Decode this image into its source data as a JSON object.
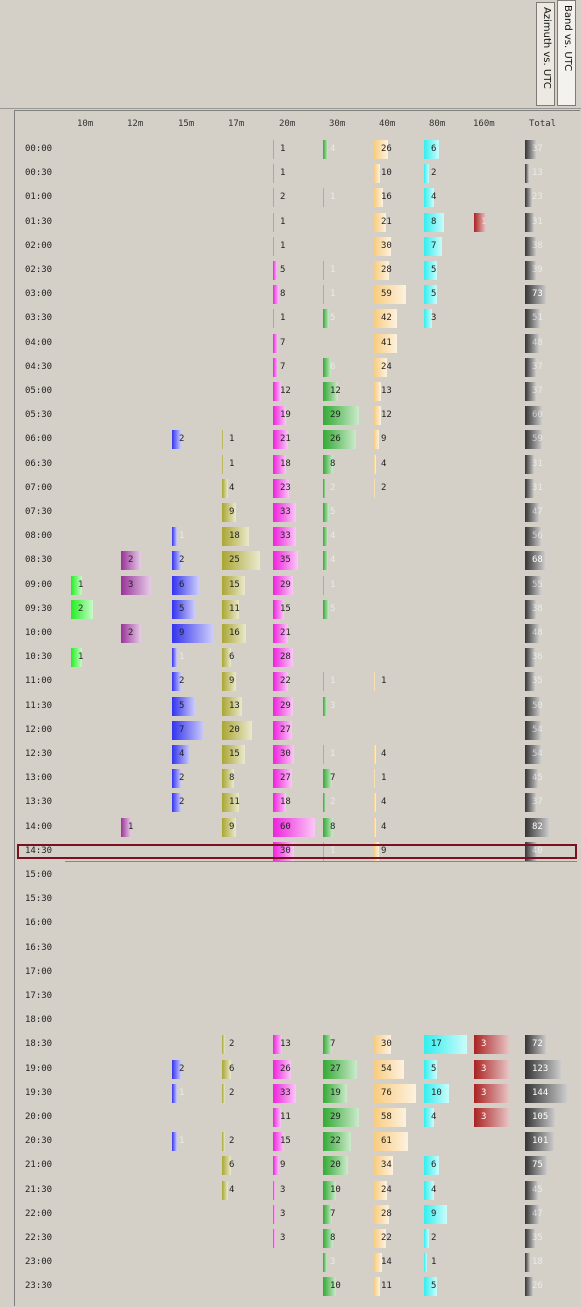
{
  "tabs": [
    {
      "label": "Band vs. UTC"
    },
    {
      "label": "Azimuth vs. UTC"
    }
  ],
  "columns": [
    "10m",
    "12m",
    "15m",
    "17m",
    "20m",
    "30m",
    "40m",
    "80m",
    "160m",
    "Total"
  ],
  "highlighted_row": "14:30",
  "colors": {
    "10m": "#22ee22",
    "12m": "#993399",
    "15m": "#3333ee",
    "17m": "#aaa633",
    "20m": "#ee22dd",
    "30m": "#33aa33",
    "40m": "#f8cc80",
    "80m": "#33eeee",
    "160m": "#aa2222",
    "Total": "#333333"
  },
  "chart_data": {
    "type": "table",
    "columns": [
      "10m",
      "12m",
      "15m",
      "17m",
      "20m",
      "30m",
      "40m",
      "80m",
      "160m",
      "Total"
    ],
    "rows": [
      {
        "time": "00:00",
        "values": {
          "20m": 1,
          "30m": 4,
          "40m": 26,
          "80m": 6,
          "Total": 37
        }
      },
      {
        "time": "00:30",
        "values": {
          "20m": 1,
          "40m": 10,
          "80m": 2,
          "Total": 13
        }
      },
      {
        "time": "01:00",
        "values": {
          "20m": 2,
          "30m": 1,
          "40m": 16,
          "80m": 4,
          "Total": 23
        }
      },
      {
        "time": "01:30",
        "values": {
          "20m": 1,
          "40m": 21,
          "80m": 8,
          "160m": 1,
          "Total": 31
        }
      },
      {
        "time": "02:00",
        "values": {
          "20m": 1,
          "40m": 30,
          "80m": 7,
          "Total": 38
        }
      },
      {
        "time": "02:30",
        "values": {
          "20m": 5,
          "30m": 1,
          "40m": 28,
          "80m": 5,
          "Total": 39
        }
      },
      {
        "time": "03:00",
        "values": {
          "20m": 8,
          "30m": 1,
          "40m": 59,
          "80m": 5,
          "Total": 73
        }
      },
      {
        "time": "03:30",
        "values": {
          "20m": 1,
          "30m": 5,
          "40m": 42,
          "80m": 3,
          "Total": 51
        }
      },
      {
        "time": "04:00",
        "values": {
          "20m": 7,
          "40m": 41,
          "Total": 48
        }
      },
      {
        "time": "04:30",
        "values": {
          "20m": 7,
          "30m": 6,
          "40m": 24,
          "Total": 37
        }
      },
      {
        "time": "05:00",
        "values": {
          "20m": 12,
          "30m": 12,
          "40m": 13,
          "Total": 37
        }
      },
      {
        "time": "05:30",
        "values": {
          "20m": 19,
          "30m": 29,
          "40m": 12,
          "Total": 60
        }
      },
      {
        "time": "06:00",
        "values": {
          "15m": 2,
          "17m": 1,
          "20m": 21,
          "30m": 26,
          "40m": 9,
          "Total": 59
        }
      },
      {
        "time": "06:30",
        "values": {
          "17m": 1,
          "20m": 18,
          "30m": 8,
          "40m": 4,
          "Total": 31
        }
      },
      {
        "time": "07:00",
        "values": {
          "17m": 4,
          "20m": 23,
          "30m": 2,
          "40m": 2,
          "Total": 31
        }
      },
      {
        "time": "07:30",
        "values": {
          "17m": 9,
          "20m": 33,
          "30m": 5,
          "Total": 47
        }
      },
      {
        "time": "08:00",
        "values": {
          "15m": 1,
          "17m": 18,
          "20m": 33,
          "30m": 4,
          "Total": 56
        }
      },
      {
        "time": "08:30",
        "values": {
          "12m": 2,
          "15m": 2,
          "17m": 25,
          "20m": 35,
          "30m": 4,
          "Total": 68
        }
      },
      {
        "time": "09:00",
        "values": {
          "10m": 1,
          "12m": 3,
          "15m": 6,
          "17m": 15,
          "20m": 29,
          "30m": 1,
          "Total": 55
        }
      },
      {
        "time": "09:30",
        "values": {
          "10m": 2,
          "15m": 5,
          "17m": 11,
          "20m": 15,
          "30m": 5,
          "Total": 38
        }
      },
      {
        "time": "10:00",
        "values": {
          "12m": 2,
          "15m": 9,
          "17m": 16,
          "20m": 21,
          "Total": 48
        }
      },
      {
        "time": "10:30",
        "values": {
          "10m": 1,
          "15m": 1,
          "17m": 6,
          "20m": 28,
          "Total": 36
        }
      },
      {
        "time": "11:00",
        "values": {
          "15m": 2,
          "17m": 9,
          "20m": 22,
          "30m": 1,
          "40m": 1,
          "Total": 35
        }
      },
      {
        "time": "11:30",
        "values": {
          "15m": 5,
          "17m": 13,
          "20m": 29,
          "30m": 3,
          "Total": 50
        }
      },
      {
        "time": "12:00",
        "values": {
          "15m": 7,
          "17m": 20,
          "20m": 27,
          "Total": 54
        }
      },
      {
        "time": "12:30",
        "values": {
          "15m": 4,
          "17m": 15,
          "20m": 30,
          "30m": 1,
          "40m": 4,
          "Total": 54
        }
      },
      {
        "time": "13:00",
        "values": {
          "15m": 2,
          "17m": 8,
          "20m": 27,
          "30m": 7,
          "40m": 1,
          "Total": 45
        }
      },
      {
        "time": "13:30",
        "values": {
          "15m": 2,
          "17m": 11,
          "20m": 18,
          "30m": 2,
          "40m": 4,
          "Total": 37
        }
      },
      {
        "time": "14:00",
        "values": {
          "12m": 1,
          "17m": 9,
          "20m": 60,
          "30m": 8,
          "40m": 4,
          "Total": 82
        }
      },
      {
        "time": "14:30",
        "values": {
          "20m": 30,
          "30m": 1,
          "40m": 9,
          "Total": 40
        }
      },
      {
        "time": "15:00",
        "values": {}
      },
      {
        "time": "15:30",
        "values": {}
      },
      {
        "time": "16:00",
        "values": {}
      },
      {
        "time": "16:30",
        "values": {}
      },
      {
        "time": "17:00",
        "values": {}
      },
      {
        "time": "17:30",
        "values": {}
      },
      {
        "time": "18:00",
        "values": {}
      },
      {
        "time": "18:30",
        "values": {
          "17m": 2,
          "20m": 13,
          "30m": 7,
          "40m": 30,
          "80m": 17,
          "160m": 3,
          "Total": 72
        }
      },
      {
        "time": "19:00",
        "values": {
          "15m": 2,
          "17m": 6,
          "20m": 26,
          "30m": 27,
          "40m": 54,
          "80m": 5,
          "160m": 3,
          "Total": 123
        }
      },
      {
        "time": "19:30",
        "values": {
          "15m": 1,
          "17m": 2,
          "20m": 33,
          "30m": 19,
          "40m": 76,
          "80m": 10,
          "160m": 3,
          "Total": 144
        }
      },
      {
        "time": "20:00",
        "values": {
          "20m": 11,
          "30m": 29,
          "40m": 58,
          "80m": 4,
          "160m": 3,
          "Total": 105
        }
      },
      {
        "time": "20:30",
        "values": {
          "15m": 1,
          "17m": 2,
          "20m": 15,
          "30m": 22,
          "40m": 61,
          "Total": 101
        }
      },
      {
        "time": "21:00",
        "values": {
          "17m": 6,
          "20m": 9,
          "30m": 20,
          "40m": 34,
          "80m": 6,
          "Total": 75
        }
      },
      {
        "time": "21:30",
        "values": {
          "17m": 4,
          "20m": 3,
          "30m": 10,
          "40m": 24,
          "80m": 4,
          "Total": 45
        }
      },
      {
        "time": "22:00",
        "values": {
          "20m": 3,
          "30m": 7,
          "40m": 28,
          "80m": 9,
          "Total": 47
        }
      },
      {
        "time": "22:30",
        "values": {
          "20m": 3,
          "30m": 8,
          "40m": 22,
          "80m": 2,
          "Total": 35
        }
      },
      {
        "time": "23:00",
        "values": {
          "30m": 3,
          "40m": 14,
          "80m": 1,
          "Total": 18
        }
      },
      {
        "time": "23:30",
        "values": {
          "30m": 10,
          "40m": 11,
          "80m": 5,
          "Total": 26
        }
      }
    ]
  }
}
